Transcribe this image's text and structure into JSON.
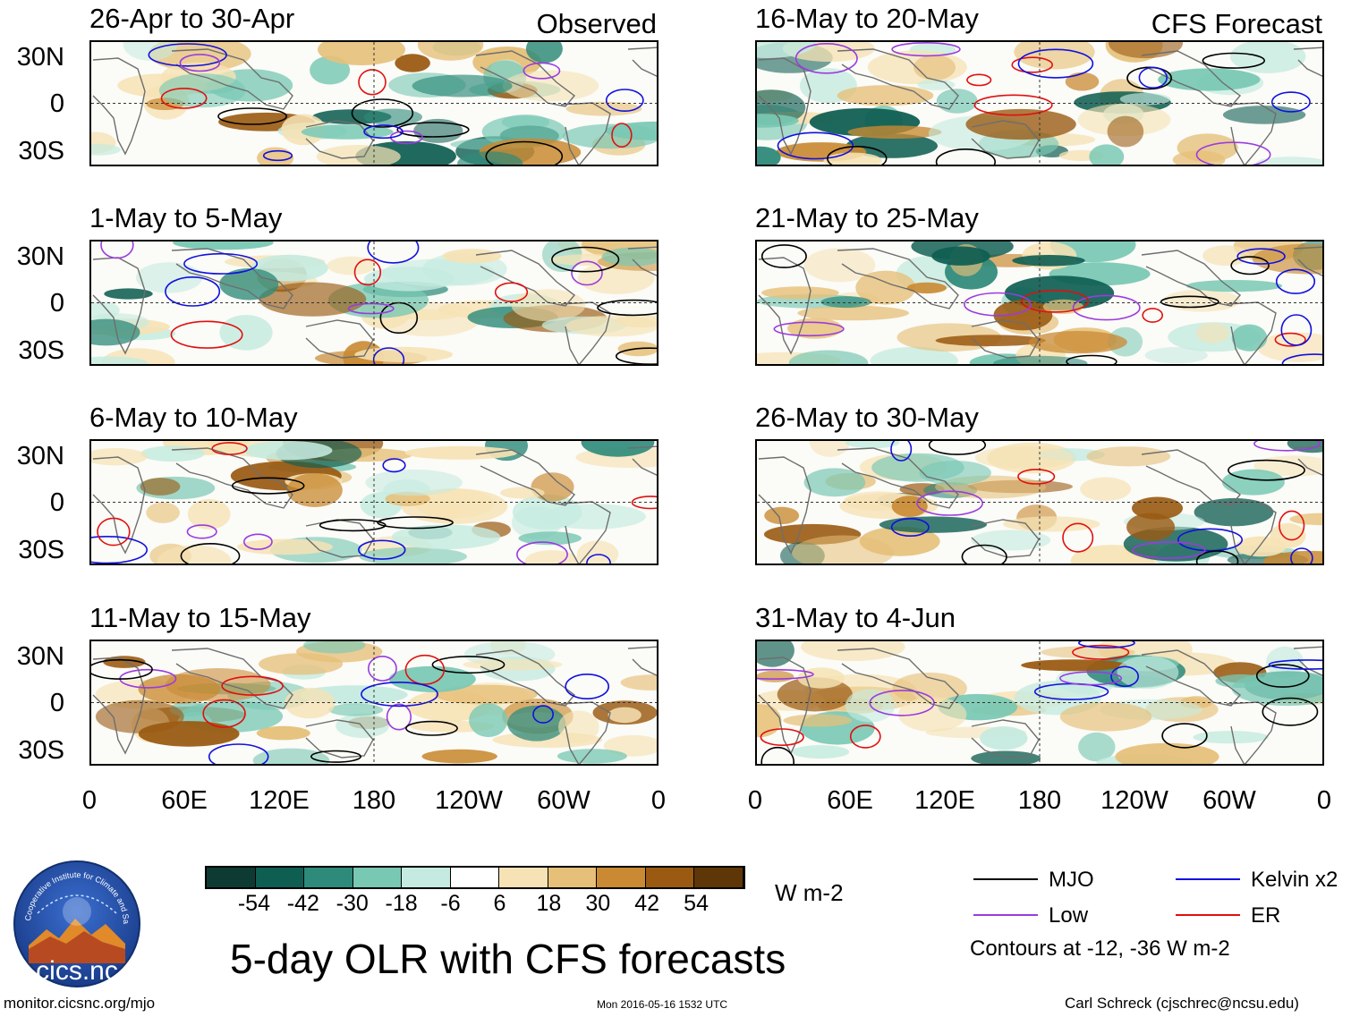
{
  "panels_left": [
    {
      "period": "26-Apr to 30-Apr",
      "tag": "Observed"
    },
    {
      "period": "1-May to 5-May",
      "tag": ""
    },
    {
      "period": "6-May to 10-May",
      "tag": ""
    },
    {
      "period": "11-May to 15-May",
      "tag": ""
    }
  ],
  "panels_right": [
    {
      "period": "16-May to 20-May",
      "tag": "CFS Forecast"
    },
    {
      "period": "21-May to 25-May",
      "tag": ""
    },
    {
      "period": "26-May to 30-May",
      "tag": ""
    },
    {
      "period": "31-May to 4-Jun",
      "tag": ""
    }
  ],
  "lat_labels": [
    "30N",
    "0",
    "30S"
  ],
  "lon_labels": [
    "0",
    "60E",
    "120E",
    "180",
    "120W",
    "60W",
    "0"
  ],
  "colorbar": {
    "colors": [
      "#0d3b33",
      "#0f5e52",
      "#2e8a7a",
      "#79c8b4",
      "#c5ebe0",
      "#ffffff",
      "#f6e2b4",
      "#e6c079",
      "#c98a33",
      "#9a5a12",
      "#5e3607"
    ],
    "labels": [
      "-54",
      "-42",
      "-30",
      "-18",
      "-6",
      "6",
      "18",
      "30",
      "42",
      "54"
    ],
    "units": "W m-2"
  },
  "main_title": "5-day OLR with CFS forecasts",
  "legend": {
    "items": [
      {
        "label": "MJO",
        "color": "#000000"
      },
      {
        "label": "Kelvin x2",
        "color": "#1010e0"
      },
      {
        "label": "Low",
        "color": "#9a3be0"
      },
      {
        "label": "ER",
        "color": "#e01010"
      }
    ],
    "note": "Contours at -12, -36 W m-2"
  },
  "logo_text": "cics.nc",
  "logo_ring_text": "Cooperative Institute for Climate and Satellites",
  "footer": {
    "url": "monitor.cicsnc.org/mjo",
    "timestamp": "Mon 2016-05-16 1532 UTC",
    "author": "Carl Schreck (cjschrec@ncsu.edu)"
  }
}
